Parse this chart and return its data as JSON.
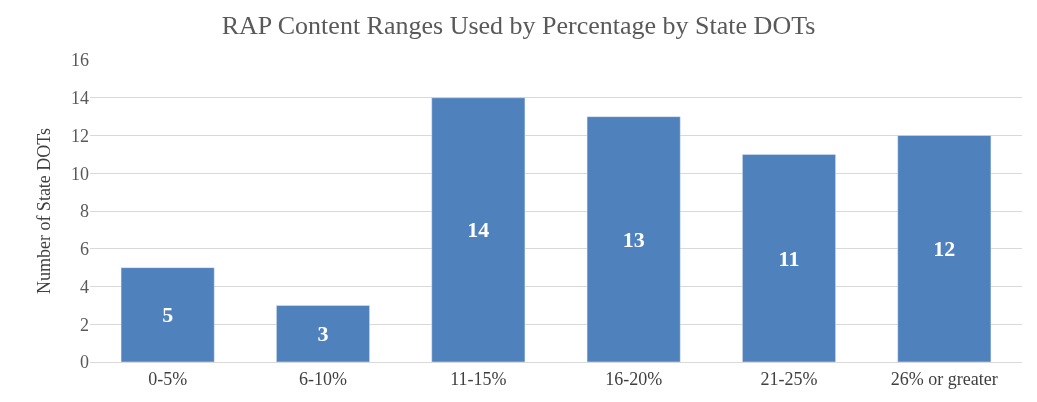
{
  "chart_data": {
    "type": "bar",
    "title": "RAP Content Ranges Used by Percentage by State DOTs",
    "ylabel": "Number of State DOTs",
    "categories": [
      "0-5%",
      "6-10%",
      "11-15%",
      "16-20%",
      "21-25%",
      "26% or greater"
    ],
    "values": [
      5,
      3,
      14,
      13,
      11,
      12
    ],
    "color": "#4f81bd",
    "ylim": [
      0,
      16
    ],
    "yticks": [
      0,
      2,
      4,
      6,
      8,
      10,
      12,
      14,
      16
    ],
    "grid": "y",
    "data_labels": true,
    "legend": false
  }
}
